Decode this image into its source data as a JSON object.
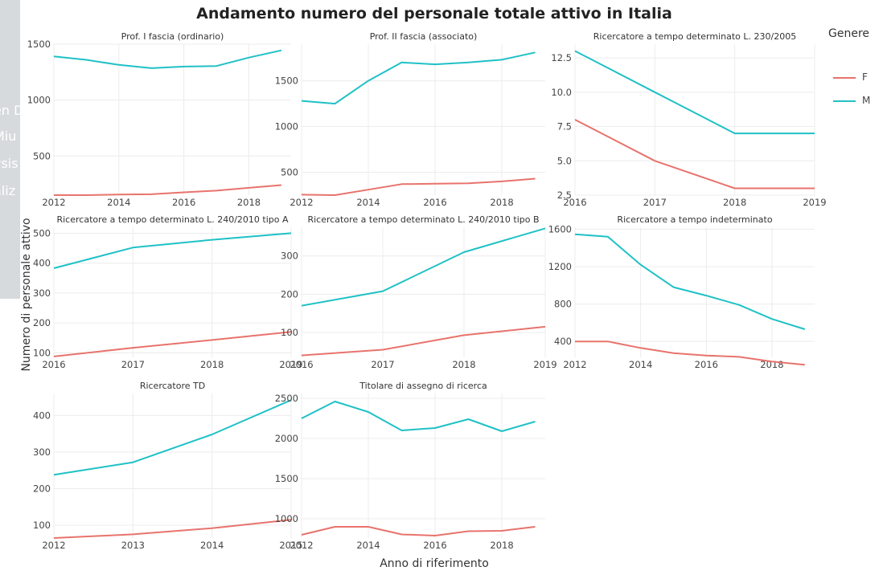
{
  "side_panel": {
    "fragments": [
      "en D",
      "Miu",
      "ysis",
      "aliz"
    ]
  },
  "title": "Andamento numero del personale totale attivo in Italia",
  "y_axis_label": "Numero di personale attivo",
  "x_axis_label": "Anno di riferimento",
  "legend": {
    "title": "Genere",
    "items": [
      {
        "label": "F",
        "color": "#e8736c"
      },
      {
        "label": "M",
        "color": "#1fc1c6"
      }
    ]
  },
  "chart_data": [
    {
      "type": "line",
      "title": "Prof. I fascia (ordinario)",
      "x": [
        2012,
        2013,
        2014,
        2015,
        2016,
        2017,
        2018,
        2019
      ],
      "xlim": [
        2012,
        2019.3
      ],
      "ylim": [
        150,
        1500
      ],
      "xticks": [
        2012,
        2014,
        2016,
        2018
      ],
      "yticks": [
        500,
        1000,
        1500
      ],
      "series": [
        {
          "name": "F",
          "values": [
            150,
            150,
            155,
            158,
            175,
            190,
            215,
            240
          ]
        },
        {
          "name": "M",
          "values": [
            1390,
            1360,
            1315,
            1285,
            1300,
            1305,
            1380,
            1445
          ]
        }
      ]
    },
    {
      "type": "line",
      "title": "Prof. II fascia (associato)",
      "x": [
        2012,
        2013,
        2014,
        2015,
        2016,
        2017,
        2018,
        2019
      ],
      "xlim": [
        2012,
        2019.3
      ],
      "ylim": [
        250,
        1900
      ],
      "xticks": [
        2012,
        2014,
        2016,
        2018
      ],
      "yticks": [
        500,
        1000,
        1500
      ],
      "series": [
        {
          "name": "F",
          "values": [
            255,
            250,
            310,
            370,
            375,
            380,
            400,
            430
          ]
        },
        {
          "name": "M",
          "values": [
            1280,
            1250,
            1500,
            1700,
            1680,
            1700,
            1730,
            1810
          ]
        }
      ]
    },
    {
      "type": "line",
      "title": "Ricercatore a tempo determinato L. 230/2005",
      "x": [
        2016,
        2017,
        2018,
        2019
      ],
      "xlim": [
        2016,
        2019
      ],
      "ylim": [
        2.5,
        13.5
      ],
      "xticks": [
        2016,
        2017,
        2018,
        2019
      ],
      "yticks": [
        2.5,
        5.0,
        7.5,
        10.0,
        12.5
      ],
      "ytick_decimals": 1,
      "series": [
        {
          "name": "F",
          "values": [
            8,
            5,
            3,
            3
          ]
        },
        {
          "name": "M",
          "values": [
            13,
            10,
            7,
            7
          ]
        }
      ]
    },
    {
      "type": "line",
      "title": "Ricercatore a tempo determinato L. 240/2010 tipo A",
      "x": [
        2016,
        2017,
        2018,
        2019
      ],
      "xlim": [
        2016,
        2019
      ],
      "ylim": [
        85,
        520
      ],
      "xticks": [
        2016,
        2017,
        2018,
        2019
      ],
      "yticks": [
        100,
        200,
        300,
        400,
        500
      ],
      "series": [
        {
          "name": "F",
          "values": [
            88,
            117,
            143,
            170
          ]
        },
        {
          "name": "M",
          "values": [
            383,
            452,
            478,
            500
          ]
        }
      ]
    },
    {
      "type": "line",
      "title": "Ricercatore a tempo determinato L. 240/2010 tipo B",
      "x": [
        2016,
        2017,
        2018,
        2019
      ],
      "xlim": [
        2016,
        2019
      ],
      "ylim": [
        35,
        375
      ],
      "xticks": [
        2016,
        2017,
        2018,
        2019
      ],
      "yticks": [
        100,
        200,
        300
      ],
      "series": [
        {
          "name": "F",
          "values": [
            40,
            55,
            93,
            115
          ]
        },
        {
          "name": "M",
          "values": [
            170,
            208,
            310,
            372
          ]
        }
      ]
    },
    {
      "type": "line",
      "title": "Ricercatore a tempo indeterminato",
      "x": [
        2012,
        2013,
        2014,
        2015,
        2016,
        2017,
        2018,
        2019
      ],
      "xlim": [
        2012,
        2019.3
      ],
      "ylim": [
        230,
        1620
      ],
      "xticks": [
        2012,
        2014,
        2016,
        2018
      ],
      "yticks": [
        400,
        800,
        1200,
        1600
      ],
      "series": [
        {
          "name": "F",
          "values": [
            400,
            400,
            330,
            275,
            250,
            235,
            185,
            150
          ]
        },
        {
          "name": "M",
          "values": [
            1545,
            1520,
            1220,
            980,
            890,
            790,
            640,
            530
          ]
        }
      ]
    },
    {
      "type": "line",
      "title": "Ricercatore TD",
      "x": [
        2012,
        2013,
        2014,
        2015
      ],
      "xlim": [
        2012,
        2015
      ],
      "ylim": [
        65,
        460
      ],
      "xticks": [
        2012,
        2013,
        2014,
        2015
      ],
      "yticks": [
        100,
        200,
        300,
        400
      ],
      "series": [
        {
          "name": "F",
          "values": [
            65,
            75,
            92,
            115
          ]
        },
        {
          "name": "M",
          "values": [
            238,
            272,
            348,
            442
          ]
        }
      ]
    },
    {
      "type": "line",
      "title": "Titolare di assegno di ricerca",
      "x": [
        2012,
        2013,
        2014,
        2015,
        2016,
        2017,
        2018,
        2019
      ],
      "xlim": [
        2012,
        2019.3
      ],
      "ylim": [
        760,
        2560
      ],
      "xticks": [
        2012,
        2014,
        2016,
        2018
      ],
      "yticks": [
        1000,
        1500,
        2000,
        2500
      ],
      "series": [
        {
          "name": "F",
          "values": [
            800,
            900,
            900,
            805,
            790,
            845,
            850,
            900
          ]
        },
        {
          "name": "M",
          "values": [
            2250,
            2460,
            2330,
            2100,
            2130,
            2240,
            2090,
            2210
          ]
        }
      ]
    }
  ]
}
